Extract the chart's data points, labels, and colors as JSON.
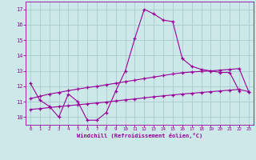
{
  "title": "",
  "xlabel": "Windchill (Refroidissement éolien,°C)",
  "ylabel": "",
  "bg_color": "#cce8e8",
  "grid_color": "#aacccc",
  "line_color": "#990099",
  "x_data": [
    0,
    1,
    2,
    3,
    4,
    5,
    6,
    7,
    8,
    9,
    10,
    11,
    12,
    13,
    14,
    15,
    16,
    17,
    18,
    19,
    20,
    21,
    22,
    23
  ],
  "y_wavy": [
    12.2,
    11.1,
    10.7,
    10.0,
    11.5,
    11.0,
    9.8,
    9.8,
    10.3,
    11.7,
    13.0,
    15.1,
    17.0,
    16.7,
    16.3,
    16.2,
    13.8,
    13.3,
    13.1,
    13.0,
    12.9,
    12.9,
    11.7,
    null
  ],
  "y_upper": [
    11.2,
    11.35,
    11.5,
    11.6,
    11.72,
    11.82,
    11.92,
    12.0,
    12.1,
    12.2,
    12.3,
    12.4,
    12.5,
    12.6,
    12.7,
    12.8,
    12.88,
    12.93,
    12.97,
    13.0,
    13.05,
    13.1,
    13.15,
    11.65
  ],
  "y_lower": [
    10.5,
    10.55,
    10.62,
    10.68,
    10.74,
    10.8,
    10.86,
    10.92,
    10.98,
    11.05,
    11.12,
    11.18,
    11.25,
    11.32,
    11.38,
    11.44,
    11.5,
    11.55,
    11.6,
    11.65,
    11.7,
    11.75,
    11.8,
    11.65
  ],
  "xlim": [
    -0.5,
    23.5
  ],
  "ylim": [
    9.5,
    17.5
  ],
  "yticks": [
    10,
    11,
    12,
    13,
    14,
    15,
    16,
    17
  ],
  "xticks": [
    0,
    1,
    2,
    3,
    4,
    5,
    6,
    7,
    8,
    9,
    10,
    11,
    12,
    13,
    14,
    15,
    16,
    17,
    18,
    19,
    20,
    21,
    22,
    23
  ]
}
